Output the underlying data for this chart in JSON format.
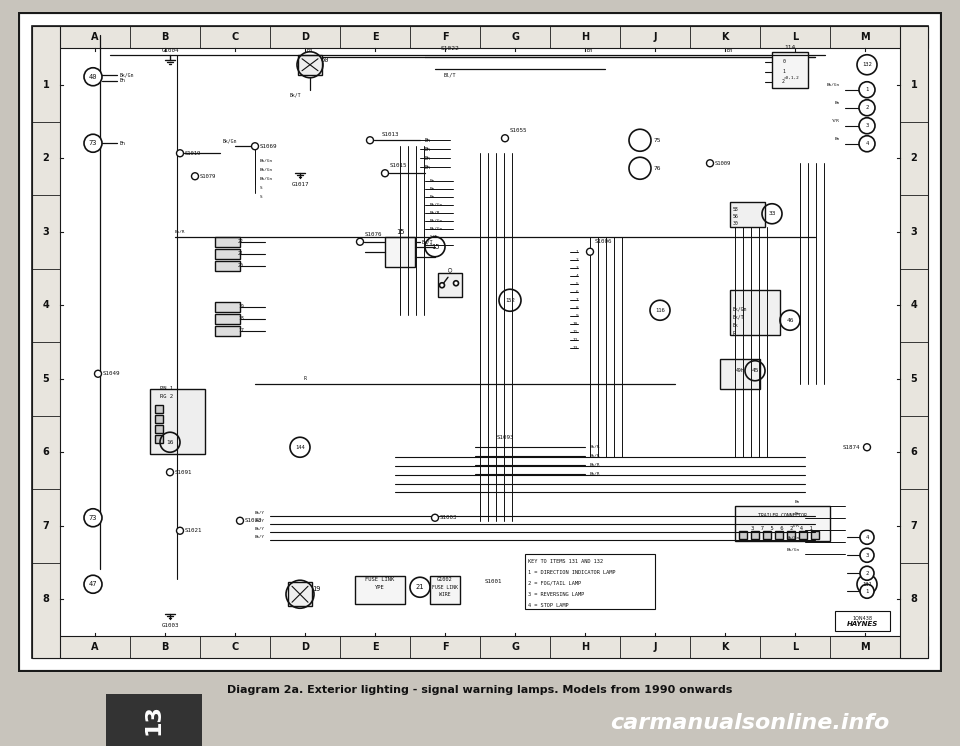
{
  "page_bg": "#c8c4bc",
  "outer_border_color": "#1a1a1a",
  "diagram_bg": "#ffffff",
  "grid_bg": "#e8e5de",
  "grid_line_color": "#555555",
  "text_color": "#111111",
  "line_color": "#111111",
  "title_text": "Diagram 2a. Exterior lighting - signal warning lamps. Models from 1990 onwards",
  "caption_text": "carmanualsonline.info",
  "chapter_number": "13",
  "col_labels": [
    "A",
    "B",
    "C",
    "D",
    "E",
    "F",
    "G",
    "H",
    "J",
    "K",
    "L",
    "M"
  ],
  "row_labels": [
    "1",
    "2",
    "3",
    "4",
    "5",
    "6",
    "7",
    "8"
  ],
  "key_text": [
    "KEY TO ITEMS 131 AND 132",
    "1 = DIRECTION INDICATOR LAMP",
    "2 = FOG/TAIL LAMP",
    "3 = REVERSING LAMP",
    "4 = STOP LAMP"
  ],
  "bottom_tab_bg": "#333333",
  "bottom_tab_text_color": "#ffffff",
  "watermark_bg": "#111111",
  "watermark_text_color": "#ffffff"
}
